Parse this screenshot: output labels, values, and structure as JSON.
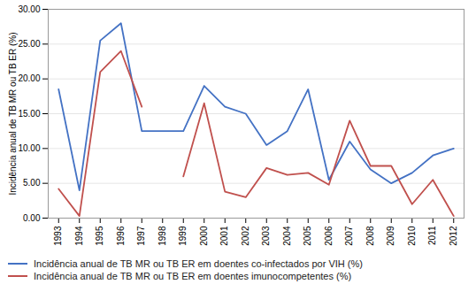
{
  "chart_data": {
    "type": "line",
    "x": [
      1993,
      1994,
      1995,
      1996,
      1997,
      1998,
      1999,
      2000,
      2001,
      2002,
      2003,
      2004,
      2005,
      2006,
      2007,
      2008,
      2009,
      2010,
      2011,
      2012
    ],
    "series": [
      {
        "name": "Incidência anual de TB MR ou TB ER em doentes co-infectados por VIH (%)",
        "color": "#4472C4",
        "values": [
          18.5,
          4.0,
          25.5,
          28.0,
          12.5,
          12.5,
          12.5,
          19.0,
          16.0,
          15.0,
          10.5,
          12.5,
          18.5,
          5.5,
          11.0,
          7.0,
          5.0,
          6.5,
          9.0,
          10.0
        ]
      },
      {
        "name": "Incidência anual de TB MR ou TB ER em doentes imunocompetentes (%)",
        "color": "#C0504D",
        "values": [
          4.2,
          0.3,
          21.0,
          24.0,
          16.0,
          null,
          6.0,
          16.5,
          3.8,
          3.0,
          7.2,
          6.2,
          6.5,
          4.8,
          14.0,
          7.5,
          7.5,
          2.0,
          5.5,
          0.3
        ]
      }
    ],
    "ylabel": "Incidência anual de TB MR ou TB ER (%)",
    "xlim": [
      1992.5,
      2012.5
    ],
    "xticks": [
      1993,
      1994,
      1995,
      1996,
      1997,
      1998,
      1999,
      2000,
      2001,
      2002,
      2003,
      2004,
      2005,
      2006,
      2007,
      2008,
      2009,
      2010,
      2011,
      2012
    ],
    "ylim": [
      0,
      30
    ],
    "yticks": [
      {
        "value": 0,
        "label": "0.00"
      },
      {
        "value": 5,
        "label": "5.00"
      },
      {
        "value": 10,
        "label": "10.00"
      },
      {
        "value": 15,
        "label": "15.00"
      },
      {
        "value": 20,
        "label": "20.00"
      },
      {
        "value": 25,
        "label": "25.00"
      },
      {
        "value": 30,
        "label": "30.00"
      }
    ],
    "grid": true,
    "legend": "bottom left"
  }
}
